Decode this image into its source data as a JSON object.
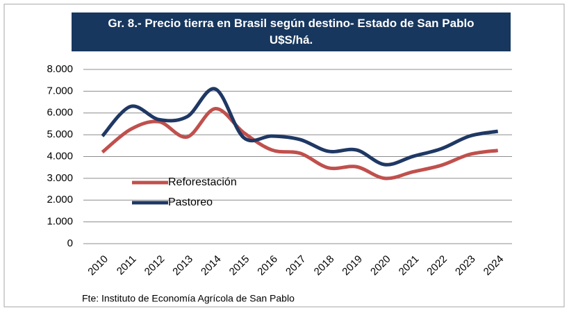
{
  "chart_data": {
    "type": "line",
    "title": "Gr. 8.- Precio tierra en Brasil según destino- Estado de San Pablo  U$S/há.",
    "source": "Fte: Instituto de Economía Agrícola de San Pablo",
    "categories": [
      "2010",
      "2011",
      "2012",
      "2013",
      "2014",
      "2015",
      "2016",
      "2017",
      "2018",
      "2019",
      "2020",
      "2021",
      "2022",
      "2023",
      "2024"
    ],
    "series": [
      {
        "name": "Reforestación",
        "color": "#c0504d",
        "values": [
          4200,
          5250,
          5600,
          4900,
          6200,
          5100,
          4300,
          4150,
          3480,
          3530,
          3000,
          3300,
          3600,
          4100,
          4280
        ]
      },
      {
        "name": "Pastoreo",
        "color": "#1f3864",
        "values": [
          4940,
          6300,
          5700,
          5830,
          7100,
          4870,
          4940,
          4780,
          4240,
          4300,
          3630,
          4010,
          4360,
          4940,
          5160
        ]
      }
    ],
    "ylim": [
      0,
      8000
    ],
    "yticks": [
      0,
      {
        "value": 1000,
        "label": "1.000"
      },
      {
        "value": 2000,
        "label": "2.000"
      },
      {
        "value": 3000,
        "label": "3.000"
      },
      {
        "value": 4000,
        "label": "4.000"
      },
      {
        "value": 5000,
        "label": "5.000"
      },
      {
        "value": 6000,
        "label": "6.000"
      },
      {
        "value": 7000,
        "label": "7.000"
      },
      {
        "value": 8000,
        "label": "8.000"
      }
    ],
    "grid": true,
    "smooth": true,
    "legend_position": "left"
  }
}
